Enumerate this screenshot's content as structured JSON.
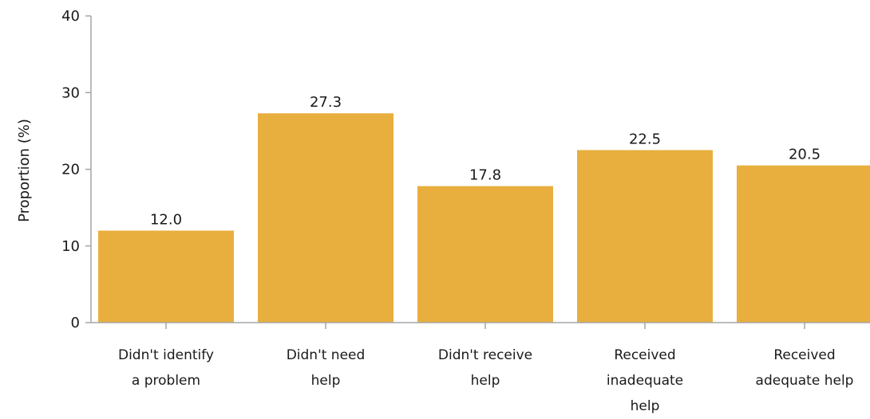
{
  "chart_data": {
    "type": "bar",
    "categories": [
      [
        "Didn't identify",
        "a problem"
      ],
      [
        "Didn't need",
        "help"
      ],
      [
        "Didn't receive",
        "help"
      ],
      [
        "Received",
        "inadequate",
        "help"
      ],
      [
        "Received",
        "adequate help"
      ]
    ],
    "values": [
      12.0,
      27.3,
      17.8,
      22.5,
      20.5
    ],
    "value_labels": [
      "12.0",
      "27.3",
      "17.8",
      "22.5",
      "20.5"
    ],
    "ylabel": "Proportion (%)",
    "ylim": [
      0,
      40
    ],
    "yticks": [
      0,
      10,
      20,
      30,
      40
    ],
    "grid": false,
    "bar_color": "#E8AF3E",
    "axis_color": "#A6A6A6"
  }
}
